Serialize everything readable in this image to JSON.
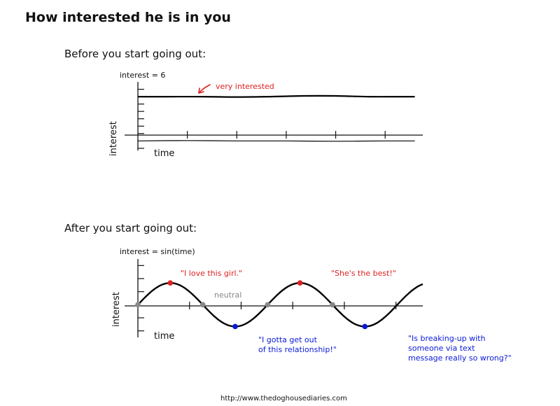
{
  "page": {
    "title": "How interested he is in you",
    "footer": "http://www.thedoghousediaries.com"
  },
  "chart_data": [
    {
      "type": "line",
      "title": "Before you start going out:",
      "formula": "interest = 6",
      "xlabel": "time",
      "ylabel": "interest",
      "xlim": [
        0,
        4.3
      ],
      "ylim": [
        -1.3,
        8
      ],
      "yticks": [
        -1,
        1,
        2,
        3,
        4,
        5,
        6,
        7
      ],
      "xticks": [
        0.75,
        1.5,
        2.25,
        3.0,
        3.75
      ],
      "grid": false,
      "series": [
        {
          "x": [
            0,
            0.5,
            1,
            1.5,
            2,
            2.5,
            3,
            3.5,
            4,
            4.2
          ],
          "y": [
            6.0,
            6.0,
            6.0,
            5.95,
            6.0,
            6.1,
            6.1,
            6.0,
            6.0,
            6.0
          ],
          "color": "#000000"
        },
        {
          "x": [
            0,
            0.75,
            1.5,
            2.25,
            3.0,
            3.75,
            4.2
          ],
          "y": [
            0.0,
            0.05,
            0.0,
            0.0,
            -0.05,
            0.0,
            0.0
          ],
          "color": "#000000"
        }
      ],
      "annotations": [
        {
          "text": "very interested",
          "x": 1.2,
          "y": 7.5,
          "color": "#e02020",
          "arrow_to": [
            0.9,
            6.2
          ]
        }
      ]
    },
    {
      "type": "line",
      "title": "After you start going out:",
      "formula": "interest = sin(time)",
      "xlabel": "time",
      "ylabel": "interest",
      "xlim": [
        0,
        13.8
      ],
      "ylim": [
        -1.5,
        2.1
      ],
      "yticks": [
        -1.2,
        -0.6,
        0.6,
        1.2,
        1.8
      ],
      "xticks": [
        2.5,
        5.0,
        7.5,
        10.0,
        12.5
      ],
      "grid": false,
      "reference_label": {
        "text": "neutral",
        "color": "#888888"
      },
      "series": [
        {
          "function": "sin",
          "x": [
            0,
            13.8
          ],
          "color": "#000000"
        }
      ],
      "points": [
        {
          "x": 0.0,
          "y": 0.0,
          "color": "#888888"
        },
        {
          "x": 1.5708,
          "y": 1.0,
          "color": "#e02020"
        },
        {
          "x": 3.1416,
          "y": 0.0,
          "color": "#888888"
        },
        {
          "x": 4.7124,
          "y": -1.0,
          "color": "#0a1ad8"
        },
        {
          "x": 6.2832,
          "y": 0.0,
          "color": "#888888"
        },
        {
          "x": 7.854,
          "y": 1.0,
          "color": "#e02020"
        },
        {
          "x": 9.4248,
          "y": 0.0,
          "color": "#888888"
        },
        {
          "x": 10.9956,
          "y": -1.0,
          "color": "#0a1ad8"
        }
      ],
      "annotations": [
        {
          "text": "\"I love this girl.\"",
          "color": "#e02020"
        },
        {
          "text": "\"She's the best!\"",
          "color": "#e02020"
        },
        {
          "lines": [
            "\"I gotta get out",
            "of this relationship!\""
          ],
          "color": "#0a1ad8"
        },
        {
          "lines": [
            "\"Is breaking-up with",
            "someone via text",
            "message really so wrong?\""
          ],
          "color": "#0a1ad8"
        }
      ]
    }
  ]
}
